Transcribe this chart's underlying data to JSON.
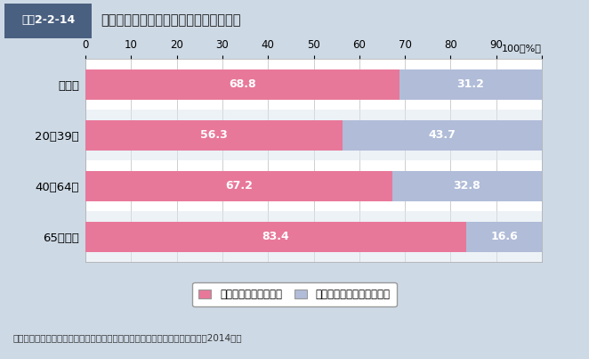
{
  "title": "健康のために食生活に気をつけているか",
  "title_tag": "図表2-2-14",
  "categories": [
    "全年齢",
    "20～39歳",
    "40～64歳",
    "65歳以上"
  ],
  "values_yes": [
    68.8,
    56.3,
    67.2,
    83.4
  ],
  "values_no": [
    31.2,
    43.7,
    32.8,
    16.6
  ],
  "color_yes": "#e8789a",
  "color_no": "#b0bcd8",
  "legend_yes": "気をつけていると思う",
  "legend_no": "気をつけていると思わない",
  "source": "資料：厚生労働省政策統括官付政策評価官室委託「健康意識に関する調査」（2014年）",
  "xlim": [
    0,
    100
  ],
  "xticks": [
    0,
    10,
    20,
    30,
    40,
    50,
    60,
    70,
    80,
    90,
    100
  ],
  "background_outer": "#cdd9e5",
  "background_inner": "#ffffff",
  "tag_bg": "#4a6080",
  "title_bg": "#e8eef4",
  "row_alt": "#dce6f0"
}
